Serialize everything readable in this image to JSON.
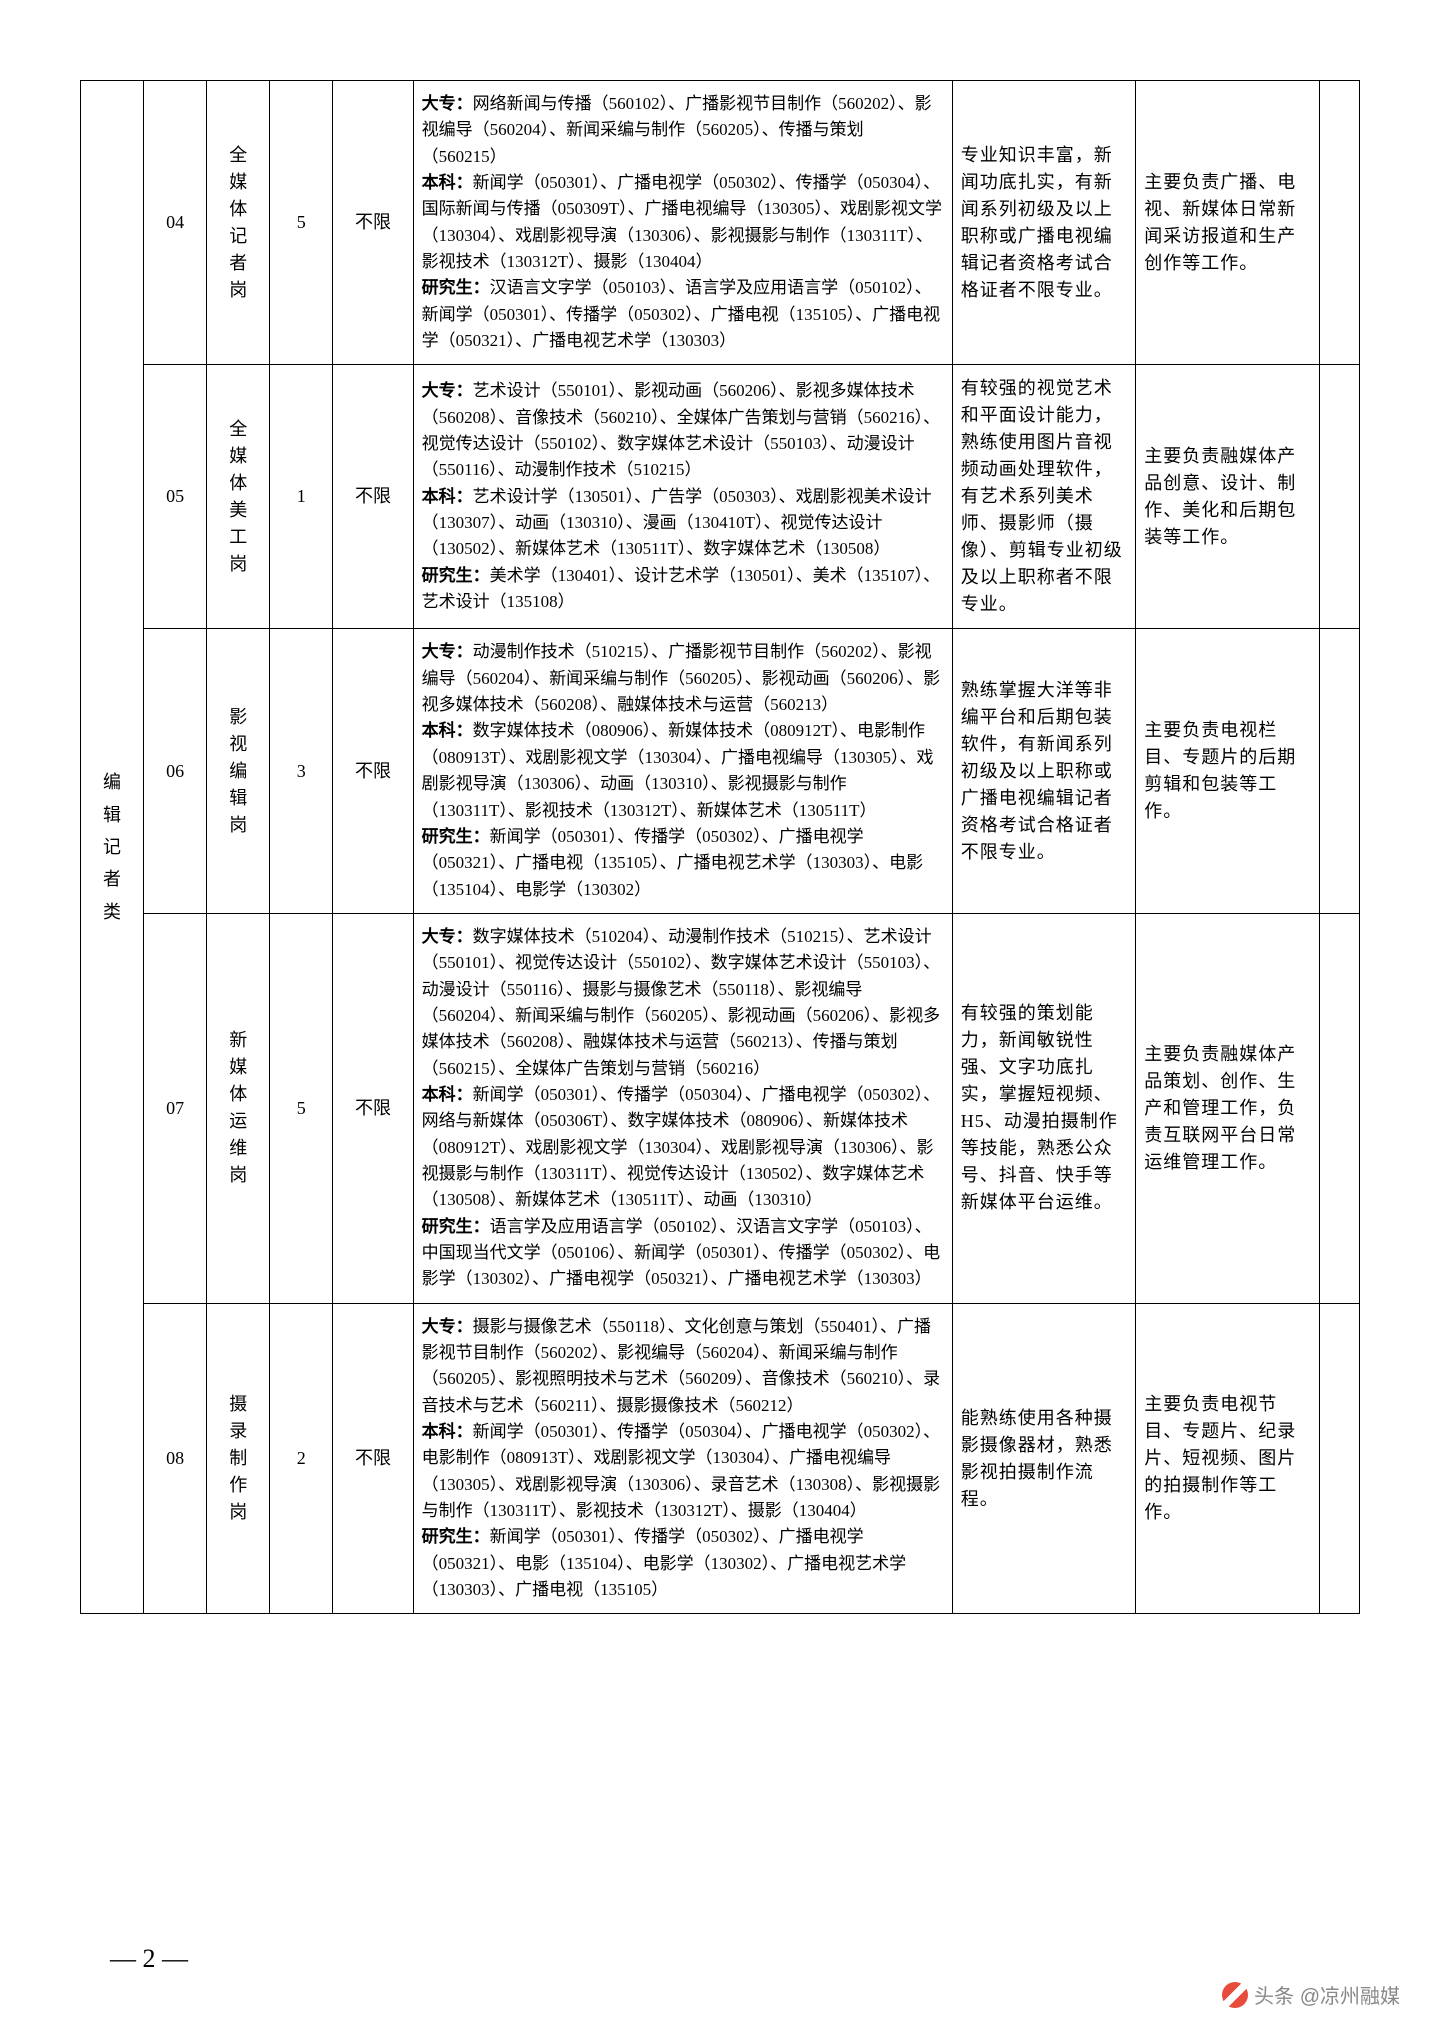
{
  "category_label": "编辑记者类",
  "page_number": "2",
  "watermark": "头条 @凉州融媒",
  "rows": [
    {
      "num": "04",
      "position": "全媒体记者岗",
      "count": "5",
      "limit": "不限",
      "majors": "<b>大专：</b>网络新闻与传播（560102）、广播影视节目制作（560202）、影视编导（560204）、新闻采编与制作（560205）、传播与策划（560215）<br><b>本科：</b>新闻学（050301）、广播电视学（050302）、传播学（050304）、国际新闻与传播（050309T）、广播电视编导（130305）、戏剧影视文学（130304）、戏剧影视导演（130306）、影视摄影与制作（130311T）、影视技术（130312T）、摄影（130404）<br><b>研究生：</b>汉语言文字学（050103）、语言学及应用语言学（050102）、新闻学（050301）、传播学（050302）、广播电视（135105）、广播电视学（050321）、广播电视艺术学（130303）",
      "requirement": "专业知识丰富，新闻功底扎实，有新闻系列初级及以上职称或广播电视编辑记者资格考试合格证者不限专业。",
      "duty": "主要负责广播、电视、新媒体日常新闻采访报道和生产创作等工作。"
    },
    {
      "num": "05",
      "position": "全媒体美工岗",
      "count": "1",
      "limit": "不限",
      "majors": "<b>大专：</b>艺术设计（550101）、影视动画（560206）、影视多媒体技术（560208）、音像技术（560210）、全媒体广告策划与营销（560216）、视觉传达设计（550102）、数字媒体艺术设计（550103）、动漫设计（550116）、动漫制作技术（510215）<br><b>本科：</b>艺术设计学（130501）、广告学（050303）、戏剧影视美术设计（130307）、动画（130310）、漫画（130410T）、视觉传达设计（130502）、新媒体艺术（130511T）、数字媒体艺术（130508）<br><b>研究生：</b>美术学（130401）、设计艺术学（130501）、美术（135107）、艺术设计（135108）",
      "requirement": "有较强的视觉艺术和平面设计能力，熟练使用图片音视频动画处理软件，有艺术系列美术师、摄影师（摄像）、剪辑专业初级及以上职称者不限专业。",
      "duty": "主要负责融媒体产品创意、设计、制作、美化和后期包装等工作。"
    },
    {
      "num": "06",
      "position": "影视编辑岗",
      "count": "3",
      "limit": "不限",
      "majors": "<b>大专：</b>动漫制作技术（510215）、广播影视节目制作（560202）、影视编导（560204）、新闻采编与制作（560205）、影视动画（560206）、影视多媒体技术（560208）、融媒体技术与运营（560213）<br><b>本科：</b>数字媒体技术（080906）、新媒体技术（080912T）、电影制作（080913T）、戏剧影视文学（130304）、广播电视编导（130305）、戏剧影视导演（130306）、动画（130310）、影视摄影与制作（130311T）、影视技术（130312T）、新媒体艺术（130511T）<br><b>研究生：</b>新闻学（050301）、传播学（050302）、广播电视学（050321）、广播电视（135105）、广播电视艺术学（130303）、电影（135104）、电影学（130302）",
      "requirement": "熟练掌握大洋等非编平台和后期包装软件，有新闻系列初级及以上职称或广播电视编辑记者资格考试合格证者不限专业。",
      "duty": "主要负责电视栏目、专题片的后期剪辑和包装等工作。"
    },
    {
      "num": "07",
      "position": "新媒体运维岗",
      "count": "5",
      "limit": "不限",
      "majors": "<b>大专：</b>数字媒体技术（510204）、动漫制作技术（510215）、艺术设计（550101）、视觉传达设计（550102）、数字媒体艺术设计（550103）、动漫设计（550116）、摄影与摄像艺术（550118）、影视编导（560204）、新闻采编与制作（560205）、影视动画（560206）、影视多媒体技术（560208）、融媒体技术与运营（560213）、传播与策划（560215）、全媒体广告策划与营销（560216）<br><b>本科：</b>新闻学（050301）、传播学（050304）、广播电视学（050302）、网络与新媒体（050306T）、数字媒体技术（080906）、新媒体技术（080912T）、戏剧影视文学（130304）、戏剧影视导演（130306）、影视摄影与制作（130311T）、视觉传达设计（130502）、数字媒体艺术（130508）、新媒体艺术（130511T）、动画（130310）<br><b>研究生：</b>语言学及应用语言学（050102）、汉语言文字学（050103）、中国现当代文学（050106）、新闻学（050301）、传播学（050302）、电影学（130302）、广播电视学（050321）、广播电视艺术学（130303）",
      "requirement": "有较强的策划能力，新闻敏锐性强、文字功底扎实，掌握短视频、H5、动漫拍摄制作等技能，熟悉公众号、抖音、快手等新媒体平台运维。",
      "duty": "主要负责融媒体产品策划、创作、生产和管理工作，负责互联网平台日常运维管理工作。"
    },
    {
      "num": "08",
      "position": "摄录制作岗",
      "count": "2",
      "limit": "不限",
      "majors": "<b>大专：</b>摄影与摄像艺术（550118）、文化创意与策划（550401）、广播影视节目制作（560202）、影视编导（560204）、新闻采编与制作（560205）、影视照明技术与艺术（560209）、音像技术（560210）、录音技术与艺术（560211）、摄影摄像技术（560212）<br><b>本科：</b>新闻学（050301）、传播学（050304）、广播电视学（050302）、电影制作（080913T）、戏剧影视文学（130304）、广播电视编导（130305）、戏剧影视导演（130306）、录音艺术（130308）、影视摄影与制作（130311T）、影视技术（130312T）、摄影（130404）<br><b>研究生：</b>新闻学（050301）、传播学（050302）、广播电视学（050321）、电影（135104）、电影学（130302）、广播电视艺术学（130303）、广播电视（135105）",
      "requirement": "能熟练使用各种摄影摄像器材，熟悉影视拍摄制作流程。",
      "duty": "主要负责电视节目、专题片、纪录片、短视频、图片的拍摄制作等工作。"
    }
  ]
}
